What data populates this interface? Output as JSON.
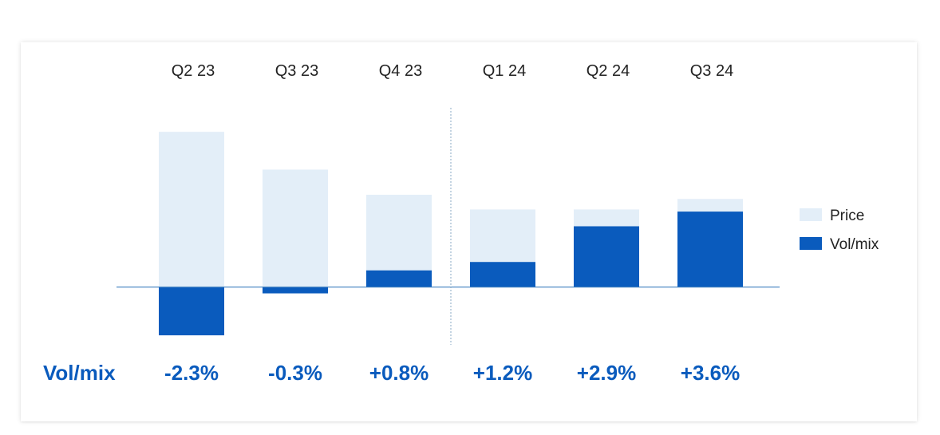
{
  "colors": {
    "price": "#e3eef8",
    "volmix": "#0a5bbd",
    "baseline": "#3e7fbf",
    "divider": "#8aa9c4",
    "label_accent": "#0a5bbd"
  },
  "chart_data": {
    "type": "bar",
    "stacked": true,
    "categories": [
      "Q2 23",
      "Q3 23",
      "Q4 23",
      "Q1 24",
      "Q2 24",
      "Q3 24"
    ],
    "series": [
      {
        "name": "Price",
        "values": [
          7.4,
          5.6,
          3.6,
          2.5,
          0.8,
          0.6
        ]
      },
      {
        "name": "Vol/mix",
        "values": [
          -2.3,
          -0.3,
          0.8,
          1.2,
          2.9,
          3.6
        ]
      }
    ],
    "ylim": [
      -2.6,
      8.7
    ],
    "divider_between": [
      "Q4 23",
      "Q1 24"
    ],
    "legend_position": "right",
    "row_labels": {
      "title": "Vol/mix",
      "values": [
        "-2.3%",
        "-0.3%",
        "+0.8%",
        "+1.2%",
        "+2.9%",
        "+3.6%"
      ]
    },
    "title": "",
    "xlabel": "",
    "ylabel": ""
  }
}
